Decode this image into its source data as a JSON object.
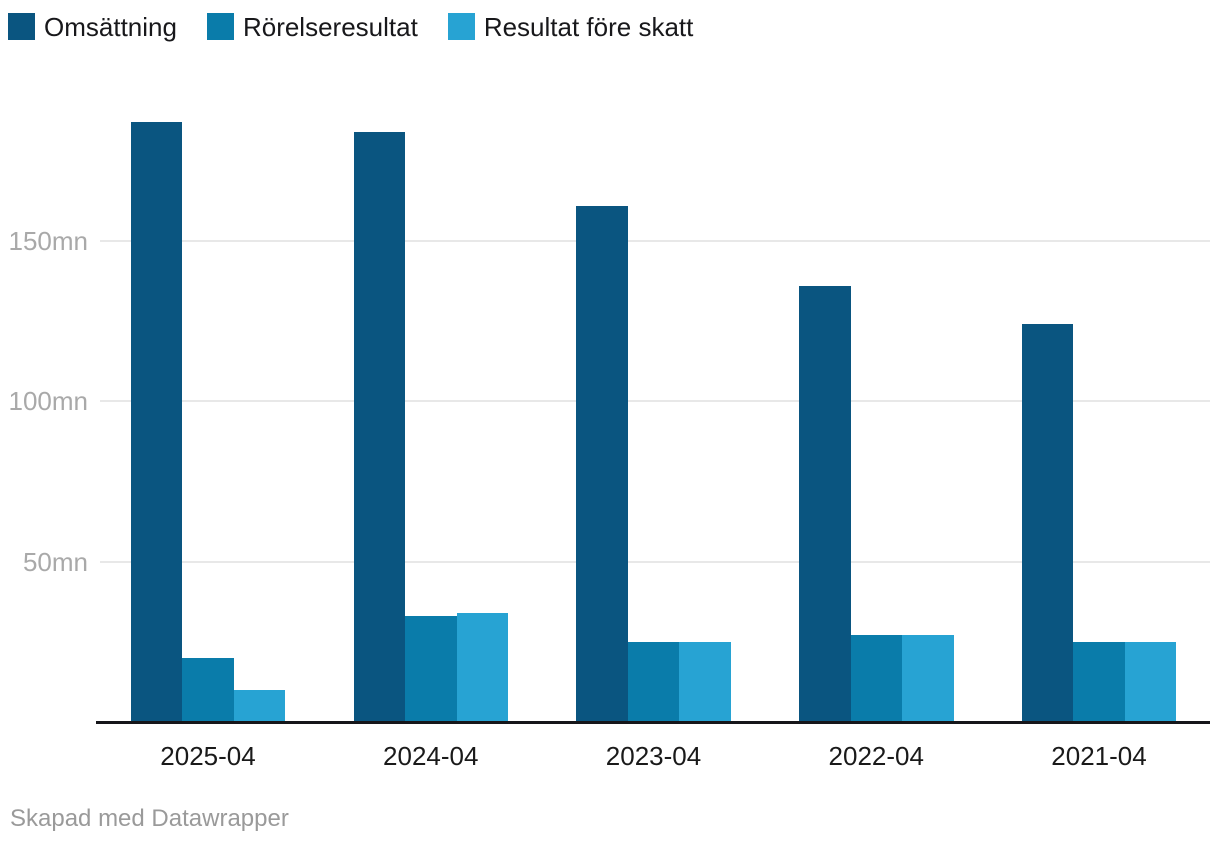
{
  "chart_data": {
    "type": "bar",
    "categories": [
      "2025-04",
      "2024-04",
      "2023-04",
      "2022-04",
      "2021-04"
    ],
    "series": [
      {
        "name": "Omsättning",
        "color": "#0A5580",
        "values": [
          187,
          184,
          161,
          136,
          124
        ]
      },
      {
        "name": "Rörelseresultat",
        "color": "#0A7CAA",
        "values": [
          20,
          33,
          25,
          27,
          25
        ]
      },
      {
        "name": "Resultat före skatt",
        "color": "#27A3D3",
        "values": [
          10,
          34,
          25,
          27,
          25
        ]
      }
    ],
    "unit": "mn",
    "y_ticks": [
      {
        "value": 50,
        "label": "50mn"
      },
      {
        "value": 100,
        "label": "100mn"
      },
      {
        "value": 150,
        "label": "150mn"
      }
    ],
    "ylim": [
      0,
      200
    ],
    "grid": true,
    "legend_position": "top-left",
    "xlabel": "",
    "ylabel": "",
    "axis_color": "#16161a",
    "gridline_color": "#e8e8e8",
    "tick_label_color": "#a9a9a9"
  },
  "footer": {
    "credit": "Skapad med Datawrapper"
  }
}
